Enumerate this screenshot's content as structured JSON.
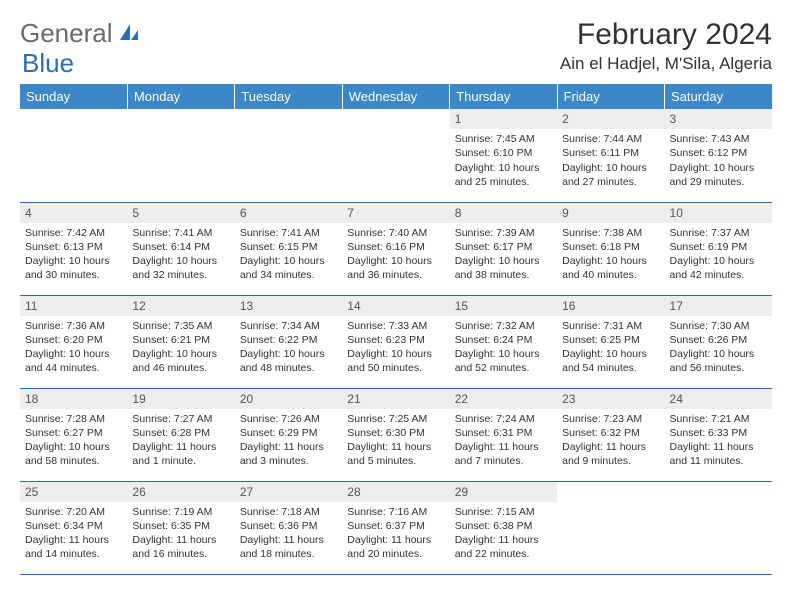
{
  "logo": {
    "general": "General",
    "blue": "Blue"
  },
  "title": "February 2024",
  "location": "Ain el Hadjel, M'Sila, Algeria",
  "colors": {
    "header_bg": "#3b87c8",
    "header_text": "#ffffff",
    "daynum_bg": "#ededed",
    "rule": "#2a6fb5",
    "logo_gray": "#6b6b6b",
    "logo_blue": "#2a6fb5"
  },
  "weekdays": [
    "Sunday",
    "Monday",
    "Tuesday",
    "Wednesday",
    "Thursday",
    "Friday",
    "Saturday"
  ],
  "weeks": [
    [
      null,
      null,
      null,
      null,
      {
        "n": "1",
        "sr": "7:45 AM",
        "ss": "6:10 PM",
        "dl": "10 hours and 25 minutes."
      },
      {
        "n": "2",
        "sr": "7:44 AM",
        "ss": "6:11 PM",
        "dl": "10 hours and 27 minutes."
      },
      {
        "n": "3",
        "sr": "7:43 AM",
        "ss": "6:12 PM",
        "dl": "10 hours and 29 minutes."
      }
    ],
    [
      {
        "n": "4",
        "sr": "7:42 AM",
        "ss": "6:13 PM",
        "dl": "10 hours and 30 minutes."
      },
      {
        "n": "5",
        "sr": "7:41 AM",
        "ss": "6:14 PM",
        "dl": "10 hours and 32 minutes."
      },
      {
        "n": "6",
        "sr": "7:41 AM",
        "ss": "6:15 PM",
        "dl": "10 hours and 34 minutes."
      },
      {
        "n": "7",
        "sr": "7:40 AM",
        "ss": "6:16 PM",
        "dl": "10 hours and 36 minutes."
      },
      {
        "n": "8",
        "sr": "7:39 AM",
        "ss": "6:17 PM",
        "dl": "10 hours and 38 minutes."
      },
      {
        "n": "9",
        "sr": "7:38 AM",
        "ss": "6:18 PM",
        "dl": "10 hours and 40 minutes."
      },
      {
        "n": "10",
        "sr": "7:37 AM",
        "ss": "6:19 PM",
        "dl": "10 hours and 42 minutes."
      }
    ],
    [
      {
        "n": "11",
        "sr": "7:36 AM",
        "ss": "6:20 PM",
        "dl": "10 hours and 44 minutes."
      },
      {
        "n": "12",
        "sr": "7:35 AM",
        "ss": "6:21 PM",
        "dl": "10 hours and 46 minutes."
      },
      {
        "n": "13",
        "sr": "7:34 AM",
        "ss": "6:22 PM",
        "dl": "10 hours and 48 minutes."
      },
      {
        "n": "14",
        "sr": "7:33 AM",
        "ss": "6:23 PM",
        "dl": "10 hours and 50 minutes."
      },
      {
        "n": "15",
        "sr": "7:32 AM",
        "ss": "6:24 PM",
        "dl": "10 hours and 52 minutes."
      },
      {
        "n": "16",
        "sr": "7:31 AM",
        "ss": "6:25 PM",
        "dl": "10 hours and 54 minutes."
      },
      {
        "n": "17",
        "sr": "7:30 AM",
        "ss": "6:26 PM",
        "dl": "10 hours and 56 minutes."
      }
    ],
    [
      {
        "n": "18",
        "sr": "7:28 AM",
        "ss": "6:27 PM",
        "dl": "10 hours and 58 minutes."
      },
      {
        "n": "19",
        "sr": "7:27 AM",
        "ss": "6:28 PM",
        "dl": "11 hours and 1 minute."
      },
      {
        "n": "20",
        "sr": "7:26 AM",
        "ss": "6:29 PM",
        "dl": "11 hours and 3 minutes."
      },
      {
        "n": "21",
        "sr": "7:25 AM",
        "ss": "6:30 PM",
        "dl": "11 hours and 5 minutes."
      },
      {
        "n": "22",
        "sr": "7:24 AM",
        "ss": "6:31 PM",
        "dl": "11 hours and 7 minutes."
      },
      {
        "n": "23",
        "sr": "7:23 AM",
        "ss": "6:32 PM",
        "dl": "11 hours and 9 minutes."
      },
      {
        "n": "24",
        "sr": "7:21 AM",
        "ss": "6:33 PM",
        "dl": "11 hours and 11 minutes."
      }
    ],
    [
      {
        "n": "25",
        "sr": "7:20 AM",
        "ss": "6:34 PM",
        "dl": "11 hours and 14 minutes."
      },
      {
        "n": "26",
        "sr": "7:19 AM",
        "ss": "6:35 PM",
        "dl": "11 hours and 16 minutes."
      },
      {
        "n": "27",
        "sr": "7:18 AM",
        "ss": "6:36 PM",
        "dl": "11 hours and 18 minutes."
      },
      {
        "n": "28",
        "sr": "7:16 AM",
        "ss": "6:37 PM",
        "dl": "11 hours and 20 minutes."
      },
      {
        "n": "29",
        "sr": "7:15 AM",
        "ss": "6:38 PM",
        "dl": "11 hours and 22 minutes."
      },
      null,
      null
    ]
  ],
  "labels": {
    "sunrise": "Sunrise: ",
    "sunset": "Sunset: ",
    "daylight": "Daylight: "
  }
}
